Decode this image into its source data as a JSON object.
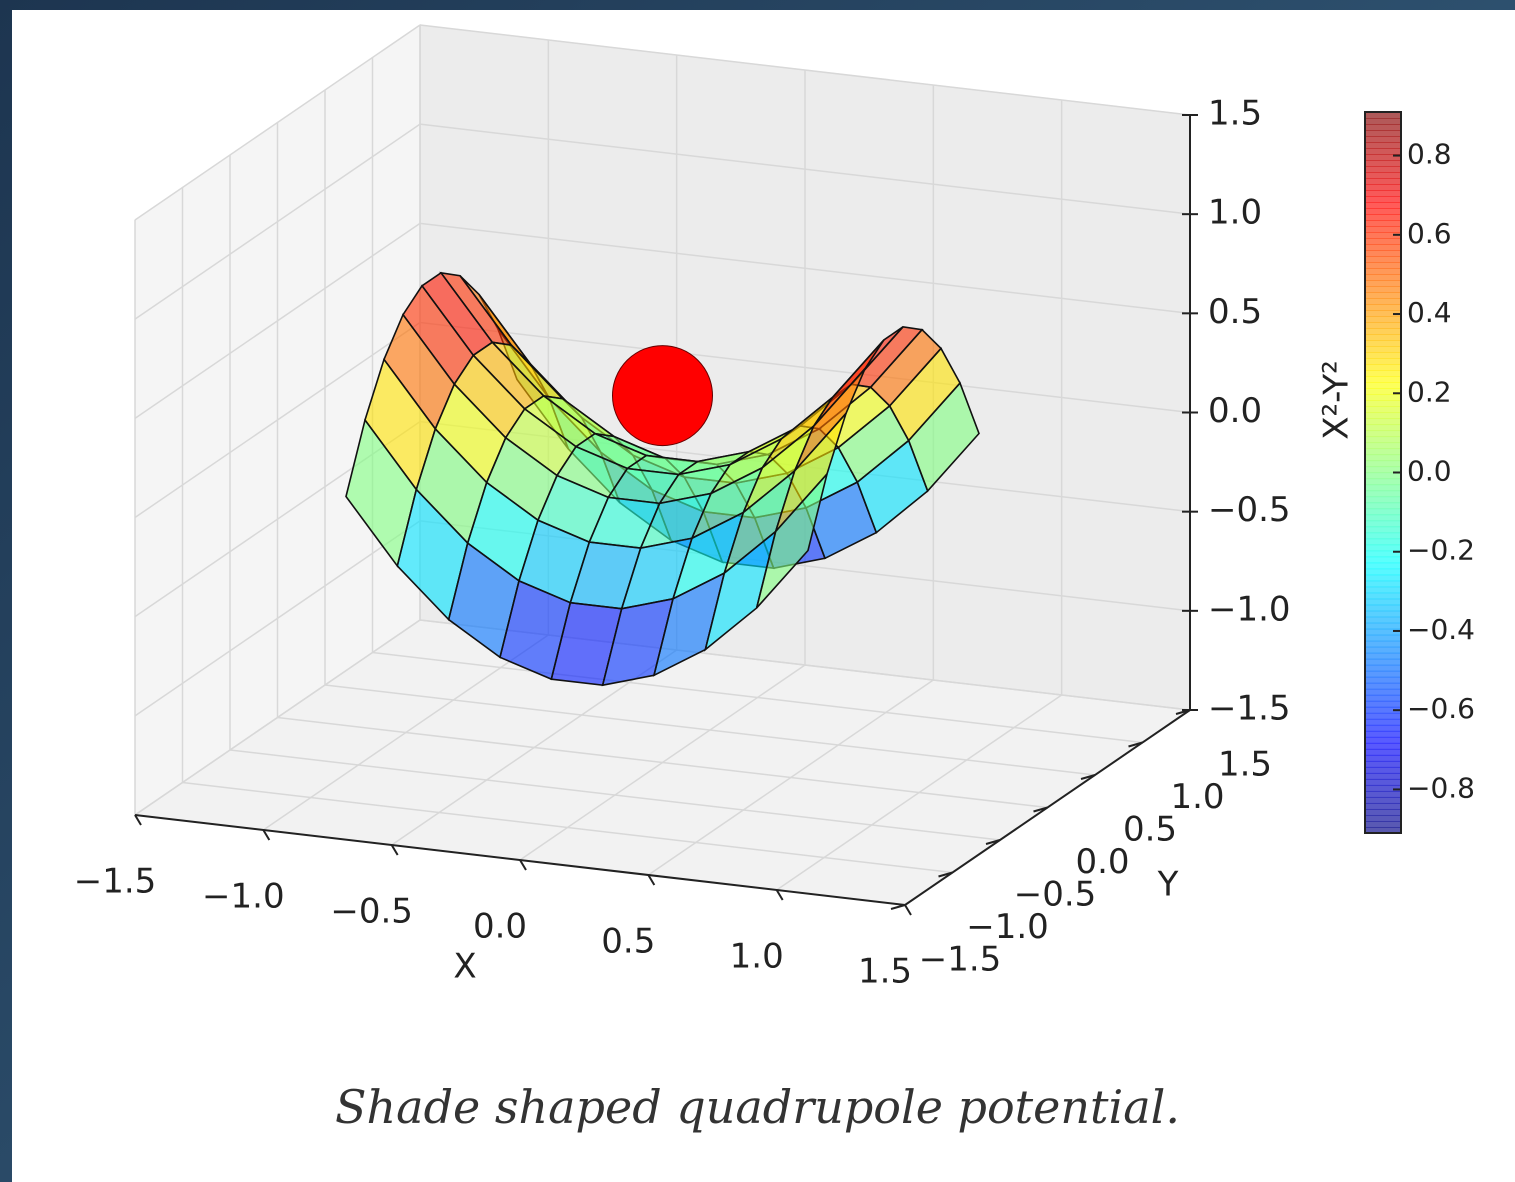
{
  "chart_data": {
    "type": "surface",
    "x": [
      -0.9,
      -0.7,
      -0.5,
      -0.3,
      -0.1,
      0.1,
      0.3,
      0.5,
      0.7,
      0.9
    ],
    "y": [
      -0.9,
      -0.7,
      -0.5,
      -0.3,
      -0.1,
      0.1,
      0.3,
      0.5,
      0.7,
      0.9
    ],
    "z": [
      [
        0,
        -0.32,
        -0.56,
        -0.72,
        -0.8,
        -0.8,
        -0.72,
        -0.56,
        -0.32,
        0
      ],
      [
        0.32,
        0,
        -0.24,
        -0.4,
        -0.48,
        -0.48,
        -0.4,
        -0.24,
        0,
        0.32
      ],
      [
        0.56,
        0.24,
        0,
        -0.16,
        -0.24,
        -0.24,
        -0.16,
        0,
        0.24,
        0.56
      ],
      [
        0.72,
        0.4,
        0.16,
        0,
        -0.08,
        -0.08,
        0,
        0.16,
        0.4,
        0.72
      ],
      [
        0.8,
        0.48,
        0.24,
        0.08,
        0,
        0,
        0.08,
        0.24,
        0.48,
        0.8
      ],
      [
        0.8,
        0.48,
        0.24,
        0.08,
        0,
        0,
        0.08,
        0.24,
        0.48,
        0.8
      ],
      [
        0.72,
        0.4,
        0.16,
        0,
        -0.08,
        -0.08,
        0,
        0.16,
        0.4,
        0.72
      ],
      [
        0.56,
        0.24,
        0,
        -0.16,
        -0.24,
        -0.24,
        -0.16,
        0,
        0.24,
        0.56
      ],
      [
        0.32,
        0,
        -0.24,
        -0.4,
        -0.48,
        -0.48,
        -0.4,
        -0.24,
        0,
        0.32
      ],
      [
        0,
        -0.32,
        -0.56,
        -0.72,
        -0.8,
        -0.8,
        -0.72,
        -0.56,
        -0.32,
        0
      ]
    ],
    "colormap": "jet",
    "clim": [
      -0.91,
      0.91
    ],
    "cticks": [
      0.8,
      0.6,
      0.4,
      0.2,
      {
        "value": 0,
        "label": "0.0"
      },
      {
        "value": -0.2,
        "label": "−0.2"
      },
      {
        "value": -0.4,
        "label": "−0.4"
      },
      {
        "value": -0.6,
        "label": "−0.6"
      },
      {
        "value": -0.8,
        "label": "−0.8"
      }
    ],
    "marker": {
      "x": 0,
      "y": 0,
      "z": 0.35,
      "color": "#ff0000"
    },
    "xlabel": "X",
    "ylabel": "Y",
    "zlabel": "X²-Y²",
    "xlim": [
      -1.5,
      1.5
    ],
    "ylim": [
      -1.5,
      1.5
    ],
    "zlim": [
      -1.5,
      1.5
    ],
    "xticks": [
      {
        "value": -1.5,
        "label": "−1.5"
      },
      {
        "value": -1,
        "label": "−1.0"
      },
      {
        "value": -0.5,
        "label": "−0.5"
      },
      {
        "value": 0,
        "label": "0.0"
      },
      0.5,
      {
        "value": 1,
        "label": "1.0"
      },
      1.5
    ],
    "yticks": [
      {
        "value": -1.5,
        "label": "−1.5"
      },
      {
        "value": -1,
        "label": "−1.0"
      },
      {
        "value": -0.5,
        "label": "−0.5"
      },
      {
        "value": 0,
        "label": "0.0"
      },
      0.5,
      {
        "value": 1,
        "label": "1.0"
      },
      1.5
    ],
    "zticks": [
      {
        "value": -1.5,
        "label": "−1.5"
      },
      {
        "value": -1,
        "label": "−1.0"
      },
      {
        "value": -0.5,
        "label": "−0.5"
      },
      {
        "value": 0,
        "label": "0.0"
      },
      0.5,
      {
        "value": 1,
        "label": "1.0"
      },
      1.5
    ],
    "grid": true
  },
  "caption": "Shade shaped quadrupole potential."
}
